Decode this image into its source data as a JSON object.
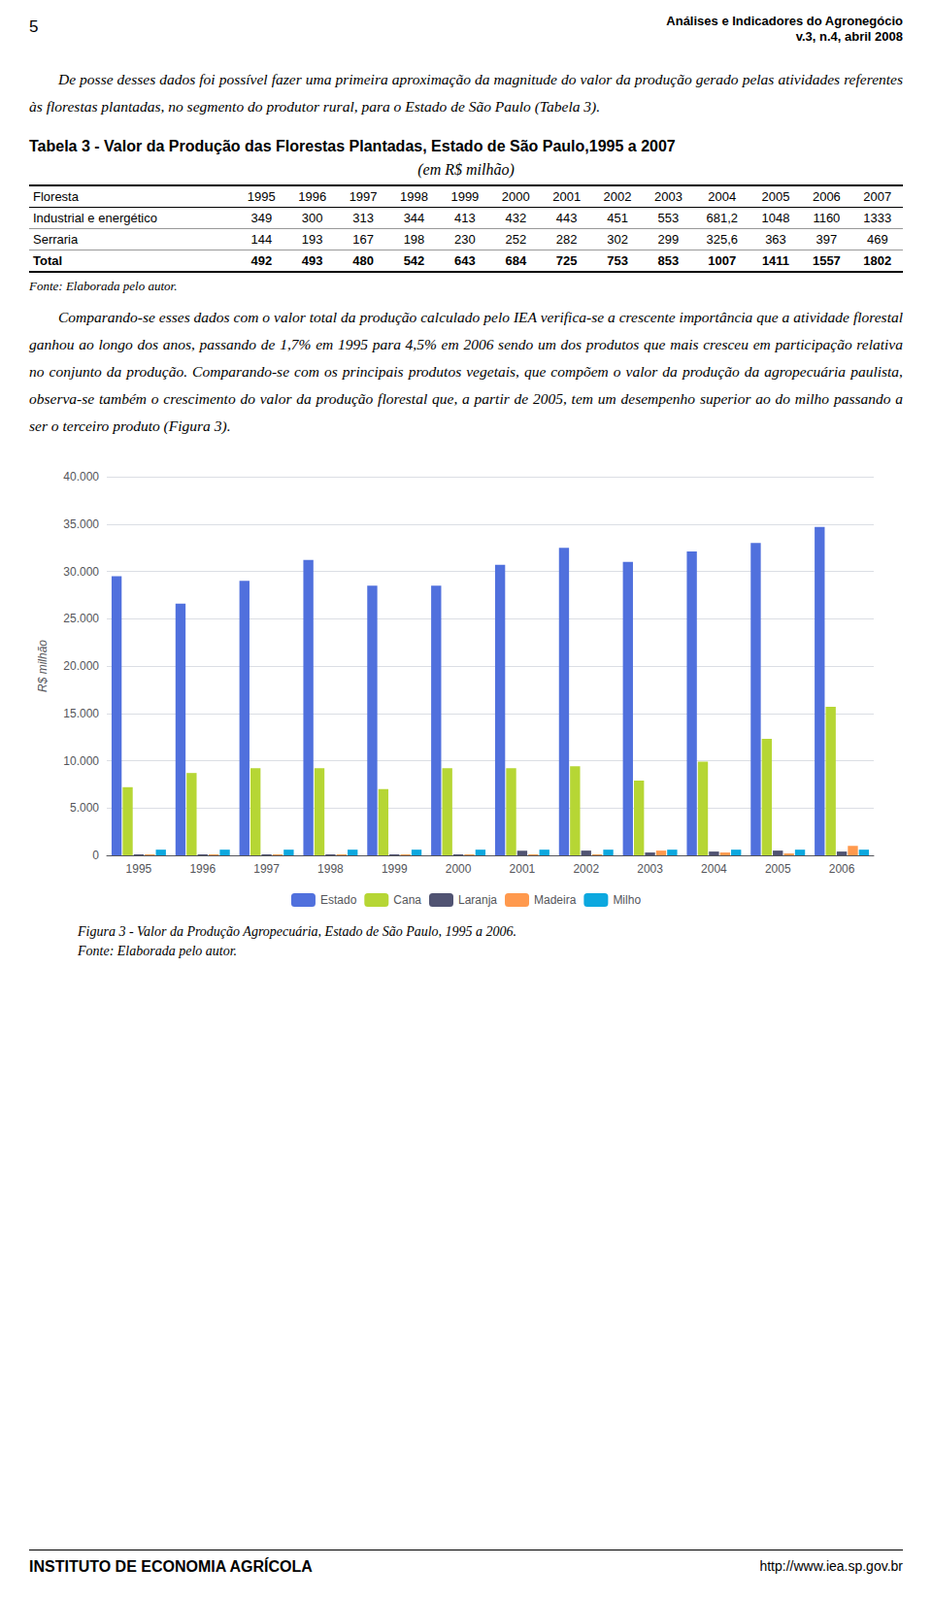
{
  "chart_data": [
    {
      "type": "text",
      "annotations": [
        "5",
        "Análises e Indicadores do Agronegócio",
        "v.3, n.4, abril 2008",
        "De posse desses dados foi possível fazer uma primeira aproximação da magnitude do valor da produção gerado pelas atividades referentes às florestas plantadas, no segmento do produtor rural, para o Estado de São Paulo (Tabela 3)."
      ]
    },
    {
      "type": "table",
      "title": "Tabela 3 - Valor da Produção das Florestas Plantadas, Estado de São Paulo,1995 a 2007",
      "subtitle": "(em R$ milhão)",
      "xlabel": "Floresta",
      "categories": [
        "1995",
        "1996",
        "1997",
        "1998",
        "1999",
        "2000",
        "2001",
        "2002",
        "2003",
        "2004",
        "2005",
        "2006",
        "2007"
      ],
      "series": [
        {
          "name": "Industrial e energético",
          "values": [
            349,
            300,
            313,
            344,
            413,
            432,
            443,
            451,
            553,
            681.2,
            1048,
            1160,
            1333
          ],
          "value_labels": [
            "349",
            "300",
            "313",
            "344",
            "413",
            "432",
            "443",
            "451",
            "553",
            "681,2",
            "1048",
            "1160",
            "1333"
          ]
        },
        {
          "name": "Serraria",
          "values": [
            144,
            193,
            167,
            198,
            230,
            252,
            282,
            302,
            299,
            325.6,
            363,
            397,
            469
          ],
          "value_labels": [
            "144",
            "193",
            "167",
            "198",
            "230",
            "252",
            "282",
            "302",
            "299",
            "325,6",
            "363",
            "397",
            "469"
          ]
        },
        {
          "name": "Total",
          "values": [
            492,
            493,
            480,
            542,
            643,
            684,
            725,
            753,
            853,
            1007,
            1411,
            1557,
            1802
          ]
        }
      ],
      "annotations": [
        "Fonte: Elaborada pelo autor."
      ]
    },
    {
      "type": "text",
      "annotations": [
        "Comparando-se esses dados com o valor total da produção calculado pelo IEA verifica-se a crescente importância que a atividade florestal ganhou ao longo dos anos, passando de 1,7% em 1995 para 4,5% em 2006 sendo um dos produtos que mais cresceu em participação relativa no conjunto da produção. Comparando-se com os principais produtos vegetais, que compõem o valor da produção da agropecuária paulista, observa-se também o crescimento do valor da produção florestal que, a partir de 2005, tem um desempenho superior ao do milho passando a ser o terceiro produto (Figura 3)."
      ]
    },
    {
      "type": "bar",
      "title": "Figura 3 - Valor da Produção Agropecuária, Estado de São Paulo, 1995 a 2006.",
      "ylabel": "R$ milhão",
      "categories": [
        "1995",
        "1996",
        "1997",
        "1998",
        "1999",
        "2000",
        "2001",
        "2002",
        "2003",
        "2004",
        "2005",
        "2006"
      ],
      "series": [
        {
          "name": "Estado",
          "values": [
            29500,
            26600,
            29000,
            31200,
            28500,
            28500,
            30700,
            32500,
            31000,
            32100,
            33000,
            34700
          ]
        },
        {
          "name": "Cana",
          "values": [
            7200,
            8700,
            9200,
            9200,
            7000,
            9200,
            9200,
            9400,
            7900,
            9900,
            12300,
            15700
          ]
        },
        {
          "name": "Laranja",
          "values": [
            100,
            100,
            100,
            100,
            100,
            100,
            500,
            500,
            300,
            400,
            500,
            400
          ]
        },
        {
          "name": "Madeira",
          "values": [
            100,
            100,
            100,
            100,
            100,
            100,
            100,
            100,
            500,
            300,
            200,
            1000
          ]
        },
        {
          "name": "Milho",
          "values": [
            600,
            600,
            600,
            600,
            600,
            600,
            600,
            600,
            600,
            600,
            600,
            600
          ]
        }
      ],
      "ylim": [
        0,
        40000
      ],
      "yticks": [
        0,
        {
          "value": 5000,
          "label": "5.000"
        },
        {
          "value": 10000,
          "label": "10.000"
        },
        {
          "value": 15000,
          "label": "15.000"
        },
        {
          "value": 20000,
          "label": "20.000"
        },
        {
          "value": 25000,
          "label": "25.000"
        },
        {
          "value": 30000,
          "label": "30.000"
        },
        {
          "value": 35000,
          "label": "35.000"
        },
        {
          "value": 40000,
          "label": "40.000"
        }
      ],
      "grid": true,
      "legend": "bottom",
      "annotations": [
        "Fonte: Elaborada pelo autor."
      ]
    },
    {
      "type": "text",
      "annotations": [
        "INSTITUTO DE ECONOMIA AGRÍCOLA",
        "http://www.iea.sp.gov.br"
      ]
    }
  ]
}
